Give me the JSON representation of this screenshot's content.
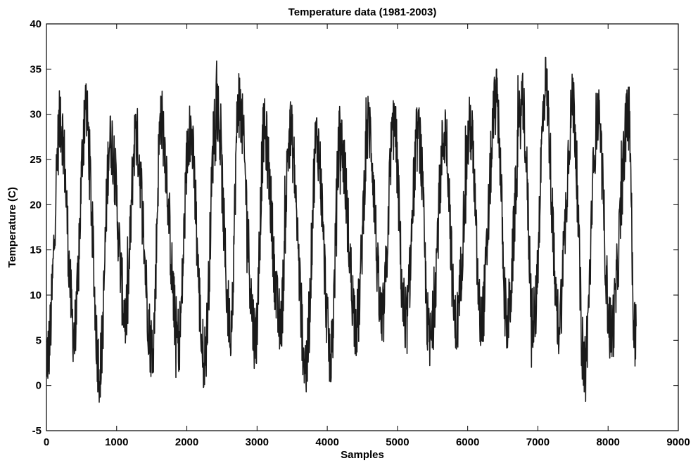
{
  "chart_data": {
    "type": "line",
    "title": "Temperature data (1981-2003)",
    "xlabel": "Samples",
    "ylabel": "Temperature (C)",
    "xlim": [
      0,
      9000
    ],
    "ylim": [
      -5,
      40
    ],
    "xticks": [
      0,
      1000,
      2000,
      3000,
      4000,
      5000,
      6000,
      7000,
      8000,
      9000
    ],
    "yticks": [
      -5,
      0,
      5,
      10,
      15,
      20,
      25,
      30,
      35,
      40
    ],
    "grid": false,
    "line_color": "#1a1a1a",
    "n_samples": 8400,
    "series": [
      {
        "period_samples": 365,
        "first_peak_sample": 200,
        "mean": 16.5,
        "amplitude": 8.5,
        "noise_amplitude": 4.0,
        "annual_peaks": [
          {
            "x": 200,
            "y": 31.9
          },
          {
            "x": 555,
            "y": 33.2
          },
          {
            "x": 910,
            "y": 29.8
          },
          {
            "x": 1270,
            "y": 30.0
          },
          {
            "x": 1630,
            "y": 32.0
          },
          {
            "x": 2040,
            "y": 30.9
          },
          {
            "x": 2420,
            "y": 34.6
          },
          {
            "x": 2740,
            "y": 34.5
          },
          {
            "x": 3100,
            "y": 30.3
          },
          {
            "x": 3470,
            "y": 30.5
          },
          {
            "x": 3850,
            "y": 29.6
          },
          {
            "x": 4180,
            "y": 29.6
          },
          {
            "x": 4590,
            "y": 31.3
          },
          {
            "x": 4950,
            "y": 31.2
          },
          {
            "x": 5300,
            "y": 30.5
          },
          {
            "x": 5680,
            "y": 30.5
          },
          {
            "x": 6040,
            "y": 31.0
          },
          {
            "x": 6410,
            "y": 35.0
          },
          {
            "x": 6780,
            "y": 34.3
          },
          {
            "x": 7110,
            "y": 36.3
          },
          {
            "x": 7500,
            "y": 34.0
          },
          {
            "x": 7850,
            "y": 32.3
          },
          {
            "x": 8300,
            "y": 33.0
          }
        ],
        "annual_troughs": [
          {
            "x": 20,
            "y": 0.8
          },
          {
            "x": 400,
            "y": 3.5
          },
          {
            "x": 760,
            "y": -1.3
          },
          {
            "x": 1130,
            "y": 5.8
          },
          {
            "x": 1510,
            "y": 1.4
          },
          {
            "x": 1880,
            "y": 2.6
          },
          {
            "x": 2250,
            "y": 0.1
          },
          {
            "x": 2620,
            "y": 4.6
          },
          {
            "x": 2980,
            "y": 3.0
          },
          {
            "x": 3330,
            "y": 4.6
          },
          {
            "x": 3700,
            "y": -0.7
          },
          {
            "x": 4050,
            "y": 0.4
          },
          {
            "x": 4420,
            "y": 4.8
          },
          {
            "x": 4780,
            "y": 5.0
          },
          {
            "x": 5110,
            "y": 4.2
          },
          {
            "x": 5460,
            "y": 2.2
          },
          {
            "x": 5830,
            "y": 4.2
          },
          {
            "x": 6190,
            "y": 5.0
          },
          {
            "x": 6560,
            "y": 5.0
          },
          {
            "x": 6940,
            "y": 4.8
          },
          {
            "x": 7290,
            "y": 5.0
          },
          {
            "x": 7660,
            "y": -0.7
          },
          {
            "x": 8040,
            "y": 3.7
          },
          {
            "x": 8370,
            "y": 4.2
          }
        ]
      }
    ]
  }
}
